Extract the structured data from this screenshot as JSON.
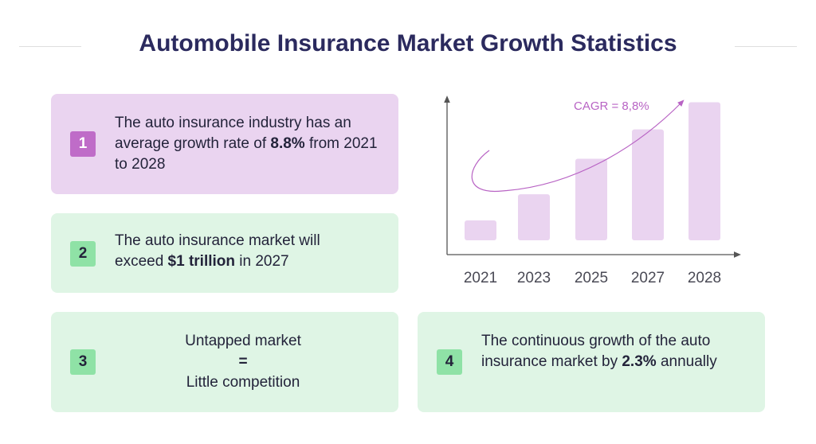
{
  "title": "Automobile Insurance Market Growth Statistics",
  "colors": {
    "title": "#2b2a5e",
    "purple_card": "#ead4f0",
    "purple_badge": "#bf6cc8",
    "green_card": "#dff5e5",
    "green_badge": "#8fe2a6",
    "bar": "#ead4f0",
    "curve": "#b863c4"
  },
  "cards": [
    {
      "number": "1",
      "pre": "The auto insurance industry has an average growth rate of ",
      "bold": "8.8%",
      "post": " from 2021 to 2028"
    },
    {
      "number": "2",
      "pre": "The auto insurance market will exceed ",
      "bold": "$1 trillion",
      "post": " in 2027"
    },
    {
      "number": "3",
      "line1": "Untapped market",
      "line2": "=",
      "line3": "Little competition"
    },
    {
      "number": "4",
      "pre": "The continuous growth of the auto insurance market by ",
      "bold": "2.3%",
      "post": " annually"
    }
  ],
  "chart_data": {
    "type": "bar",
    "categories": [
      "2021",
      "2023",
      "2025",
      "2027",
      "2028"
    ],
    "values": [
      19,
      44,
      78,
      106,
      132
    ],
    "ylim": [
      0,
      175
    ],
    "annotation": "CAGR = 8,8%",
    "grid": false
  }
}
